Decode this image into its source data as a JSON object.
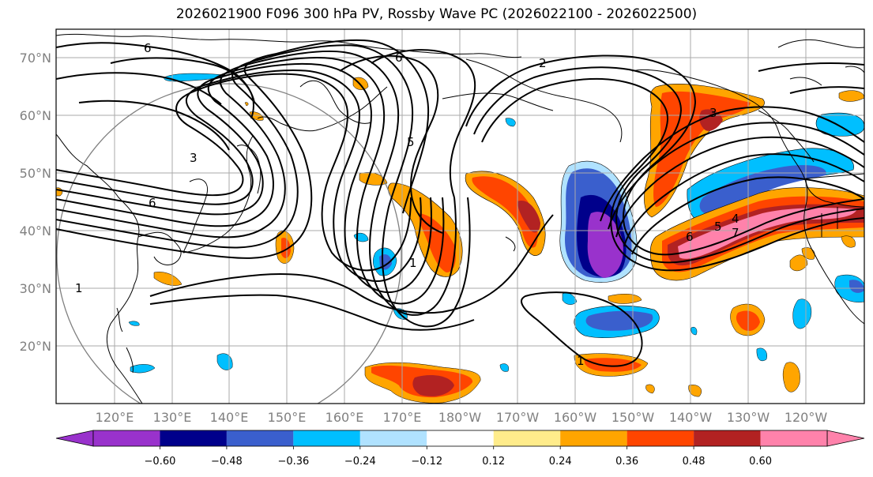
{
  "title": "2026021900 F096 300 hPa PV, Rossby Wave PC (2026022100 - 2026022500)",
  "lat_labels": [
    "70°N",
    "60°N",
    "50°N",
    "40°N",
    "30°N",
    "20°N"
  ],
  "lon_labels": [
    "120°E",
    "130°E",
    "140°E",
    "150°E",
    "160°E",
    "170°E",
    "180°W",
    "170°W",
    "160°W",
    "150°W",
    "140°W",
    "130°W",
    "120°W"
  ],
  "colorbar": {
    "ticks": [
      "−0.60",
      "−0.48",
      "−0.36",
      "−0.24",
      "−0.12",
      "0.12",
      "0.24",
      "0.36",
      "0.48",
      "0.60"
    ],
    "colors": [
      "#9932CC",
      "#00008B",
      "#3A5FCD",
      "#00BFFF",
      "#B0E2FF",
      "#FFFFFF",
      "#FFEC8B",
      "#FFA500",
      "#FF4500",
      "#B22222",
      "#FF82AB"
    ]
  },
  "contour_labels": [
    "6",
    "6",
    "2",
    "3",
    "5",
    "6",
    "1",
    "1",
    "3",
    "1",
    "7",
    "5",
    "6",
    "4"
  ],
  "fill_colors": {
    "purple": "#9932CC",
    "navy": "#00008B",
    "blue": "#3A5FCD",
    "cyan": "#00BFFF",
    "lightblue": "#B0E2FF",
    "yellow": "#FFEC8B",
    "orange": "#FFA500",
    "redorange": "#FF4500",
    "firebrick": "#B22222",
    "pink": "#FF82AB"
  }
}
